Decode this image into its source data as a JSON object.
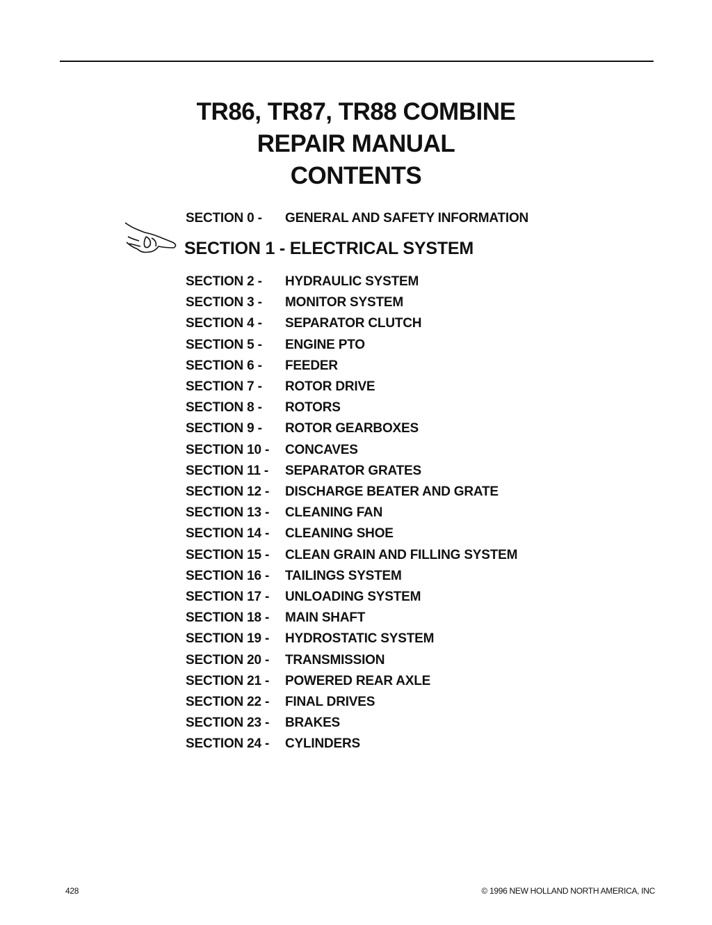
{
  "title_lines": [
    "TR86, TR87, TR88 COMBINE",
    "REPAIR MANUAL",
    "CONTENTS"
  ],
  "section0": {
    "label": "SECTION 0 -",
    "title": "GENERAL AND SAFETY INFORMATION"
  },
  "section1": {
    "text": "SECTION 1 - ELECTRICAL SYSTEM",
    "icon": "pointing-hand-icon"
  },
  "sections": [
    {
      "label": "SECTION 2 -",
      "title": "HYDRAULIC SYSTEM"
    },
    {
      "label": "SECTION 3 -",
      "title": "MONITOR SYSTEM"
    },
    {
      "label": "SECTION 4 -",
      "title": "SEPARATOR CLUTCH"
    },
    {
      "label": "SECTION 5 -",
      "title": "ENGINE PTO"
    },
    {
      "label": "SECTION 6 -",
      "title": "FEEDER"
    },
    {
      "label": "SECTION 7 -",
      "title": "ROTOR DRIVE"
    },
    {
      "label": "SECTION 8 -",
      "title": "ROTORS"
    },
    {
      "label": "SECTION 9 -",
      "title": "ROTOR GEARBOXES"
    },
    {
      "label": "SECTION 10 -",
      "title": "CONCAVES"
    },
    {
      "label": "SECTION 11 -",
      "title": "SEPARATOR GRATES"
    },
    {
      "label": "SECTION 12 -",
      "title": "DISCHARGE BEATER AND GRATE"
    },
    {
      "label": "SECTION 13 -",
      "title": "CLEANING FAN"
    },
    {
      "label": "SECTION 14 -",
      "title": "CLEANING SHOE"
    },
    {
      "label": "SECTION 15 -",
      "title": "CLEAN GRAIN AND FILLING SYSTEM"
    },
    {
      "label": "SECTION 16 -",
      "title": "TAILINGS SYSTEM"
    },
    {
      "label": "SECTION 17 -",
      "title": "UNLOADING SYSTEM"
    },
    {
      "label": "SECTION 18 -",
      "title": "MAIN SHAFT"
    },
    {
      "label": "SECTION 19 -",
      "title": "HYDROSTATIC SYSTEM"
    },
    {
      "label": "SECTION 20 -",
      "title": "TRANSMISSION"
    },
    {
      "label": "SECTION 21 -",
      "title": "POWERED REAR AXLE"
    },
    {
      "label": "SECTION 22 -",
      "title": "FINAL DRIVES"
    },
    {
      "label": "SECTION 23 -",
      "title": "BRAKES"
    },
    {
      "label": "SECTION 24 -",
      "title": "CYLINDERS"
    }
  ],
  "footer": {
    "page_number": "428",
    "copyright": "© 1996 NEW HOLLAND NORTH AMERICA, INC"
  }
}
